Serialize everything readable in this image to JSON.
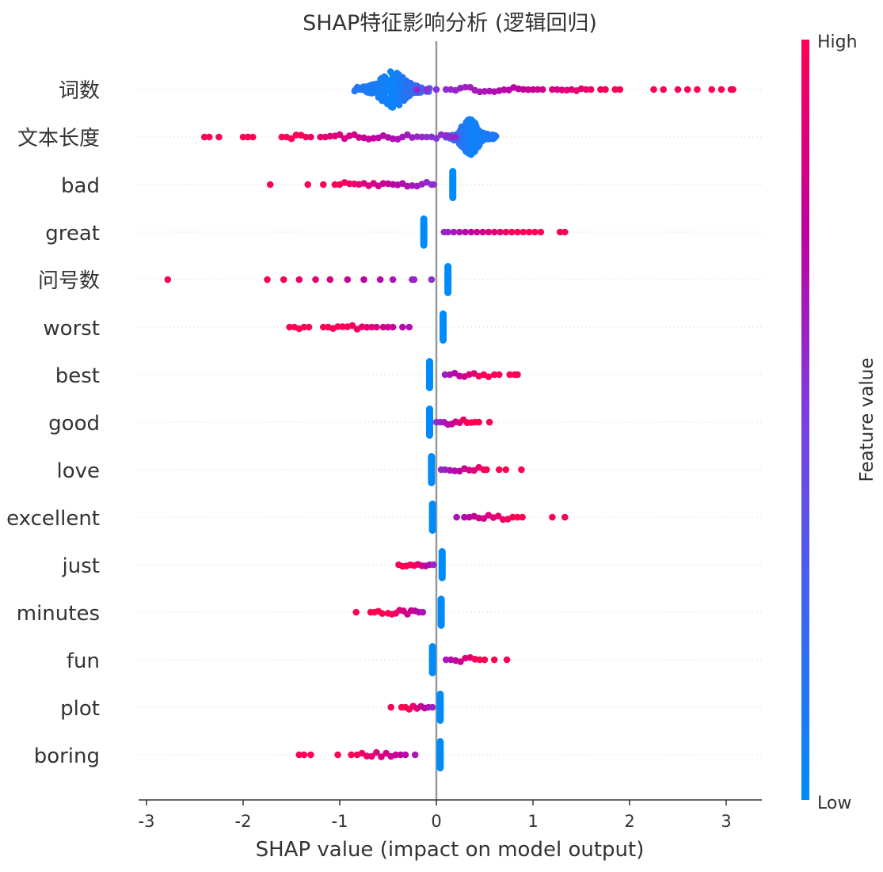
{
  "chart_data": {
    "type": "scatter",
    "subtype": "shap-beeswarm",
    "title": "SHAP特征影响分析 (逻辑回归)",
    "xlabel": "SHAP value (impact on model output)",
    "ylabel": "",
    "xlim": [
      -3.05,
      3.35
    ],
    "x_ticks": [
      -3,
      -2,
      -1,
      0,
      1,
      2,
      3
    ],
    "x_tick_labels": [
      "-3",
      "-2",
      "-1",
      "0",
      "1",
      "2",
      "3"
    ],
    "zero_line": 0,
    "grid": "dotted horizontal guide per feature",
    "legend": "none",
    "colorbar": {
      "label": "Feature value",
      "high_label": "High",
      "low_label": "Low",
      "low_color": "#008bfb",
      "high_color": "#ff0052",
      "placement": "right"
    },
    "features": [
      {
        "name": "词数",
        "low_cluster": {
          "center": -0.45,
          "spread": 0.45,
          "count": 220
        },
        "high_points": [
          -0.2,
          -0.1,
          0.0,
          0.1,
          0.15,
          0.2,
          0.25,
          0.3,
          0.35,
          0.4,
          0.45,
          0.5,
          0.55,
          0.6,
          0.65,
          0.7,
          0.75,
          0.8,
          0.85,
          0.9,
          0.95,
          1.0,
          1.05,
          1.1,
          1.2,
          1.25,
          1.3,
          1.35,
          1.4,
          1.45,
          1.5,
          1.55,
          1.6,
          1.7,
          1.75,
          1.85,
          1.9,
          2.25,
          2.35,
          2.5,
          2.6,
          2.7,
          2.85,
          2.95,
          3.05,
          3.07
        ]
      },
      {
        "name": "文本长度",
        "low_cluster": {
          "center": 0.35,
          "spread": 0.3,
          "count": 220
        },
        "high_points": [
          -2.4,
          -2.35,
          -2.25,
          -2.0,
          -1.95,
          -1.9,
          -1.6,
          -1.55,
          -1.5,
          -1.45,
          -1.4,
          -1.35,
          -1.3,
          -1.2,
          -1.15,
          -1.1,
          -1.05,
          -1.0,
          -0.95,
          -0.9,
          -0.85,
          -0.8,
          -0.75,
          -0.7,
          -0.65,
          -0.6,
          -0.55,
          -0.5,
          -0.45,
          -0.4,
          -0.35,
          -0.3,
          -0.25,
          -0.2,
          -0.15,
          -0.1,
          -0.05,
          0.0,
          0.05,
          0.1,
          0.15,
          0.2
        ]
      },
      {
        "name": "bad",
        "low_bar": 0.17,
        "high_points": [
          -1.72,
          -1.33,
          -1.17,
          -1.05,
          -1.0,
          -0.95,
          -0.9,
          -0.85,
          -0.8,
          -0.75,
          -0.7,
          -0.65,
          -0.6,
          -0.55,
          -0.5,
          -0.45,
          -0.4,
          -0.35,
          -0.3,
          -0.25,
          -0.2,
          -0.15,
          -0.1,
          -0.05,
          -0.03
        ]
      },
      {
        "name": "great",
        "low_bar": -0.13,
        "high_points": [
          0.08,
          0.12,
          0.18,
          0.24,
          0.3,
          0.36,
          0.42,
          0.48,
          0.54,
          0.6,
          0.66,
          0.72,
          0.78,
          0.84,
          0.9,
          0.96,
          1.02,
          1.08,
          1.28,
          1.33
        ]
      },
      {
        "name": "问号数",
        "low_bar": 0.12,
        "high_points": [
          -2.78,
          -1.75,
          -1.58,
          -1.42,
          -1.25,
          -1.1,
          -0.92,
          -0.75,
          -0.58,
          -0.45,
          -0.25,
          -0.23,
          -0.05
        ]
      },
      {
        "name": "worst",
        "low_bar": 0.07,
        "high_points": [
          -1.52,
          -1.47,
          -1.42,
          -1.37,
          -1.32,
          -1.17,
          -1.12,
          -1.07,
          -1.02,
          -0.97,
          -0.92,
          -0.87,
          -0.82,
          -0.77,
          -0.72,
          -0.67,
          -0.62,
          -0.55,
          -0.5,
          -0.45,
          -0.35,
          -0.28
        ]
      },
      {
        "name": "best",
        "low_bar": -0.07,
        "high_points": [
          0.09,
          0.14,
          0.19,
          0.24,
          0.29,
          0.34,
          0.39,
          0.44,
          0.49,
          0.54,
          0.6,
          0.65,
          0.76,
          0.81,
          0.84
        ]
      },
      {
        "name": "good",
        "low_bar": -0.07,
        "high_points": [
          0.0,
          0.04,
          0.08,
          0.12,
          0.16,
          0.2,
          0.24,
          0.28,
          0.32,
          0.36,
          0.4,
          0.44,
          0.55
        ]
      },
      {
        "name": "love",
        "low_bar": -0.05,
        "high_points": [
          0.05,
          0.09,
          0.14,
          0.19,
          0.24,
          0.29,
          0.34,
          0.39,
          0.44,
          0.49,
          0.52,
          0.65,
          0.72,
          0.88
        ]
      },
      {
        "name": "excellent",
        "low_bar": -0.04,
        "high_points": [
          0.21,
          0.29,
          0.34,
          0.39,
          0.44,
          0.49,
          0.54,
          0.59,
          0.64,
          0.69,
          0.74,
          0.79,
          0.84,
          0.89,
          1.2,
          1.33
        ]
      },
      {
        "name": "just",
        "low_bar": 0.06,
        "high_points": [
          -0.39,
          -0.35,
          -0.31,
          -0.27,
          -0.23,
          -0.19,
          -0.15,
          -0.11,
          -0.07,
          -0.03
        ]
      },
      {
        "name": "minutes",
        "low_bar": 0.05,
        "high_points": [
          -0.83,
          -0.68,
          -0.64,
          -0.6,
          -0.56,
          -0.5,
          -0.46,
          -0.42,
          -0.38,
          -0.34,
          -0.3,
          -0.26,
          -0.22,
          -0.18,
          -0.14
        ]
      },
      {
        "name": "fun",
        "low_bar": -0.04,
        "high_points": [
          0.1,
          0.15,
          0.2,
          0.25,
          0.3,
          0.35,
          0.4,
          0.45,
          0.5,
          0.6,
          0.73
        ]
      },
      {
        "name": "plot",
        "low_bar": 0.04,
        "high_points": [
          -0.47,
          -0.36,
          -0.32,
          -0.28,
          -0.24,
          -0.2,
          -0.16,
          -0.12,
          -0.08,
          -0.04
        ]
      },
      {
        "name": "boring",
        "low_bar": 0.04,
        "high_points": [
          -1.42,
          -1.37,
          -1.3,
          -1.02,
          -0.88,
          -0.82,
          -0.77,
          -0.72,
          -0.67,
          -0.62,
          -0.57,
          -0.52,
          -0.47,
          -0.42,
          -0.37,
          -0.32,
          -0.22
        ]
      }
    ]
  }
}
